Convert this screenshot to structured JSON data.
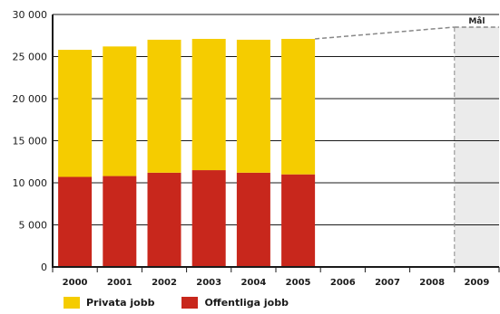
{
  "chart_data": {
    "type": "bar",
    "stacked": true,
    "categories": [
      "2000",
      "2001",
      "2002",
      "2003",
      "2004",
      "2005",
      "2006",
      "2007",
      "2008",
      "2009"
    ],
    "series": [
      {
        "name": "Offentliga jobb",
        "color": "#c8271c",
        "values": [
          10700,
          10800,
          11200,
          11500,
          11200,
          11000,
          null,
          null,
          null,
          null
        ]
      },
      {
        "name": "Privata jobb",
        "color": "#f5cc00",
        "values": [
          15100,
          15400,
          15800,
          15600,
          15800,
          16100,
          null,
          null,
          null,
          null
        ]
      }
    ],
    "ylim": [
      0,
      30000
    ],
    "yticks": [
      0,
      5000,
      10000,
      15000,
      20000,
      25000,
      30000
    ],
    "ytick_labels": [
      "0",
      "5 000",
      "10 000",
      "15 000",
      "20 000",
      "25 000",
      "30 000"
    ],
    "grid": true,
    "target": {
      "label": "Mål",
      "category": "2009",
      "value": 28500,
      "from_category": "2005"
    },
    "legend_position": "bottom-left",
    "legend": [
      {
        "label": "Privata jobb",
        "color": "#f5cc00"
      },
      {
        "label": "Offentliga jobb",
        "color": "#c8271c"
      }
    ]
  }
}
